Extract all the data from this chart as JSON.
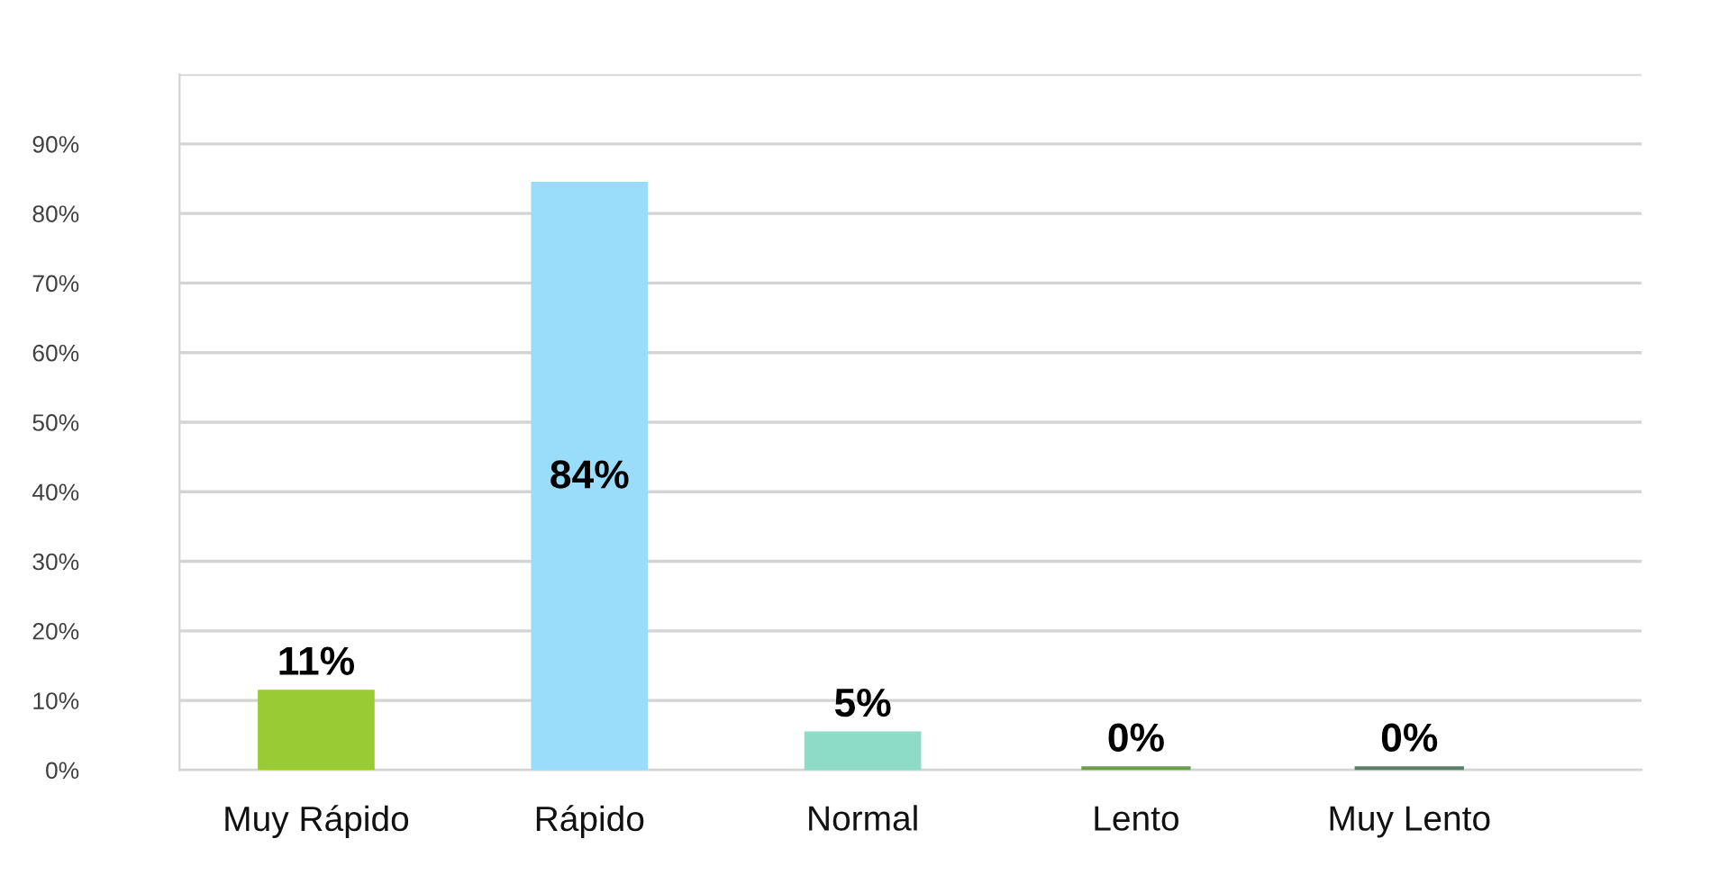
{
  "chart_data": {
    "type": "bar",
    "categories": [
      "Muy Rápido",
      "Rápido",
      "Normal",
      "Lento",
      "Muy Lento"
    ],
    "values": [
      11,
      84,
      5,
      0,
      0
    ],
    "colors": [
      "#99cc33",
      "#99ddfa",
      "#8ddcc8",
      "#6a9e4c",
      "#5b7d6b"
    ],
    "value_labels": [
      "11%",
      "84%",
      "5%",
      "0%",
      "0%"
    ],
    "ylim": [
      0,
      100
    ],
    "yticks": [
      {
        "value": 0,
        "label": "0%"
      },
      {
        "value": 10,
        "label": "10%"
      },
      {
        "value": 20,
        "label": "20%"
      },
      {
        "value": 30,
        "label": "30%"
      },
      {
        "value": 40,
        "label": "40%"
      },
      {
        "value": 50,
        "label": "50%"
      },
      {
        "value": 60,
        "label": "60%"
      },
      {
        "value": 70,
        "label": "70%"
      },
      {
        "value": 80,
        "label": "80%"
      },
      {
        "value": 90,
        "label": "90%"
      },
      {
        "value": 100,
        "label": null
      }
    ],
    "grid": "y",
    "legend": false
  }
}
